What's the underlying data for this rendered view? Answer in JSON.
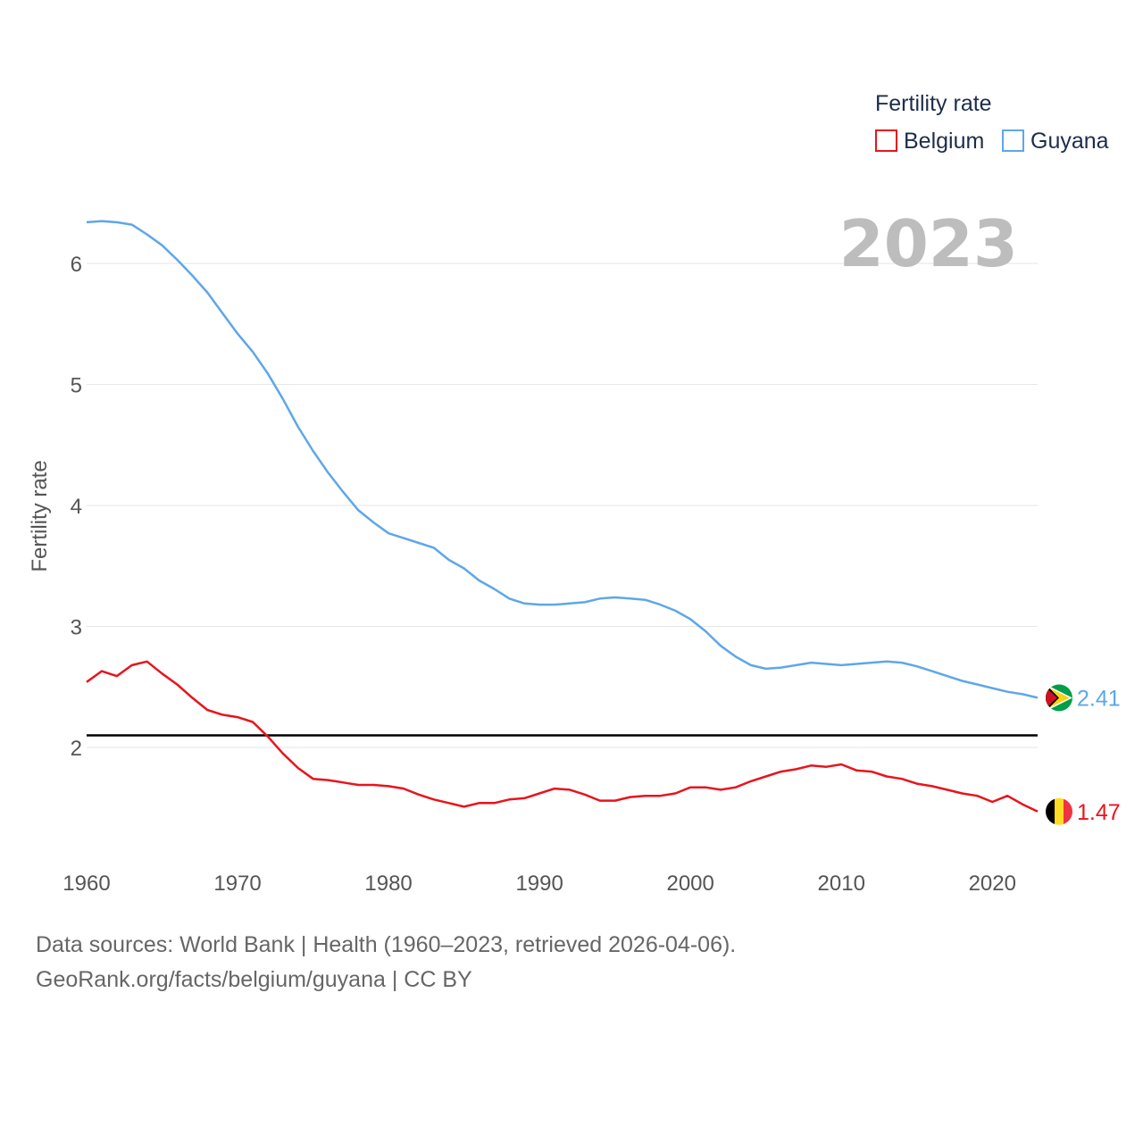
{
  "chart_data": {
    "type": "line",
    "legend_title": "Fertility rate",
    "ylabel": "Fertility rate",
    "year_label": "2023",
    "ylim": [
      1.1,
      6.6
    ],
    "xlim": [
      1960,
      2023
    ],
    "x_ticks": [
      1960,
      1970,
      1980,
      1990,
      2000,
      2010,
      2020
    ],
    "y_ticks": [
      2,
      3,
      4,
      5,
      6
    ],
    "reference_line": 2.1,
    "series": [
      {
        "name": "Belgium",
        "color": "#e8141c",
        "end_label": "1.47",
        "flag_icon": "belgium-flag-icon",
        "x": [
          1960,
          1961,
          1962,
          1963,
          1964,
          1965,
          1966,
          1967,
          1968,
          1969,
          1970,
          1971,
          1972,
          1973,
          1974,
          1975,
          1976,
          1977,
          1978,
          1979,
          1980,
          1981,
          1982,
          1983,
          1984,
          1985,
          1986,
          1987,
          1988,
          1989,
          1990,
          1991,
          1992,
          1993,
          1994,
          1995,
          1996,
          1997,
          1998,
          1999,
          2000,
          2001,
          2002,
          2003,
          2004,
          2005,
          2006,
          2007,
          2008,
          2009,
          2010,
          2011,
          2012,
          2013,
          2014,
          2015,
          2016,
          2017,
          2018,
          2019,
          2020,
          2021,
          2022,
          2023
        ],
        "values": [
          2.54,
          2.63,
          2.59,
          2.68,
          2.71,
          2.61,
          2.52,
          2.41,
          2.31,
          2.27,
          2.25,
          2.21,
          2.09,
          1.95,
          1.83,
          1.74,
          1.73,
          1.71,
          1.69,
          1.69,
          1.68,
          1.66,
          1.61,
          1.57,
          1.54,
          1.51,
          1.54,
          1.54,
          1.57,
          1.58,
          1.62,
          1.66,
          1.65,
          1.61,
          1.56,
          1.56,
          1.59,
          1.6,
          1.6,
          1.62,
          1.67,
          1.67,
          1.65,
          1.67,
          1.72,
          1.76,
          1.8,
          1.82,
          1.85,
          1.84,
          1.86,
          1.81,
          1.8,
          1.76,
          1.74,
          1.7,
          1.68,
          1.65,
          1.62,
          1.6,
          1.55,
          1.6,
          1.53,
          1.47
        ]
      },
      {
        "name": "Guyana",
        "color": "#5ea7e8",
        "end_label": "2.41",
        "flag_icon": "guyana-flag-icon",
        "x": [
          1960,
          1961,
          1962,
          1963,
          1964,
          1965,
          1966,
          1967,
          1968,
          1969,
          1970,
          1971,
          1972,
          1973,
          1974,
          1975,
          1976,
          1977,
          1978,
          1979,
          1980,
          1981,
          1982,
          1983,
          1984,
          1985,
          1986,
          1987,
          1988,
          1989,
          1990,
          1991,
          1992,
          1993,
          1994,
          1995,
          1996,
          1997,
          1998,
          1999,
          2000,
          2001,
          2002,
          2003,
          2004,
          2005,
          2006,
          2007,
          2008,
          2009,
          2010,
          2011,
          2012,
          2013,
          2014,
          2015,
          2016,
          2017,
          2018,
          2019,
          2020,
          2021,
          2022,
          2023
        ],
        "values": [
          6.34,
          6.35,
          6.34,
          6.32,
          6.24,
          6.15,
          6.03,
          5.9,
          5.76,
          5.59,
          5.42,
          5.27,
          5.09,
          4.88,
          4.65,
          4.45,
          4.27,
          4.11,
          3.96,
          3.86,
          3.77,
          3.73,
          3.69,
          3.65,
          3.55,
          3.48,
          3.38,
          3.31,
          3.23,
          3.19,
          3.18,
          3.18,
          3.19,
          3.2,
          3.23,
          3.24,
          3.23,
          3.22,
          3.18,
          3.13,
          3.06,
          2.96,
          2.84,
          2.75,
          2.68,
          2.65,
          2.66,
          2.68,
          2.7,
          2.69,
          2.68,
          2.69,
          2.7,
          2.71,
          2.7,
          2.67,
          2.63,
          2.59,
          2.55,
          2.52,
          2.49,
          2.46,
          2.44,
          2.41
        ]
      }
    ]
  },
  "footer": {
    "line1": "Data sources: World Bank | Health (1960–2023, retrieved 2026-04-06).",
    "line2": "GeoRank.org/facts/belgium/guyana | CC BY"
  }
}
